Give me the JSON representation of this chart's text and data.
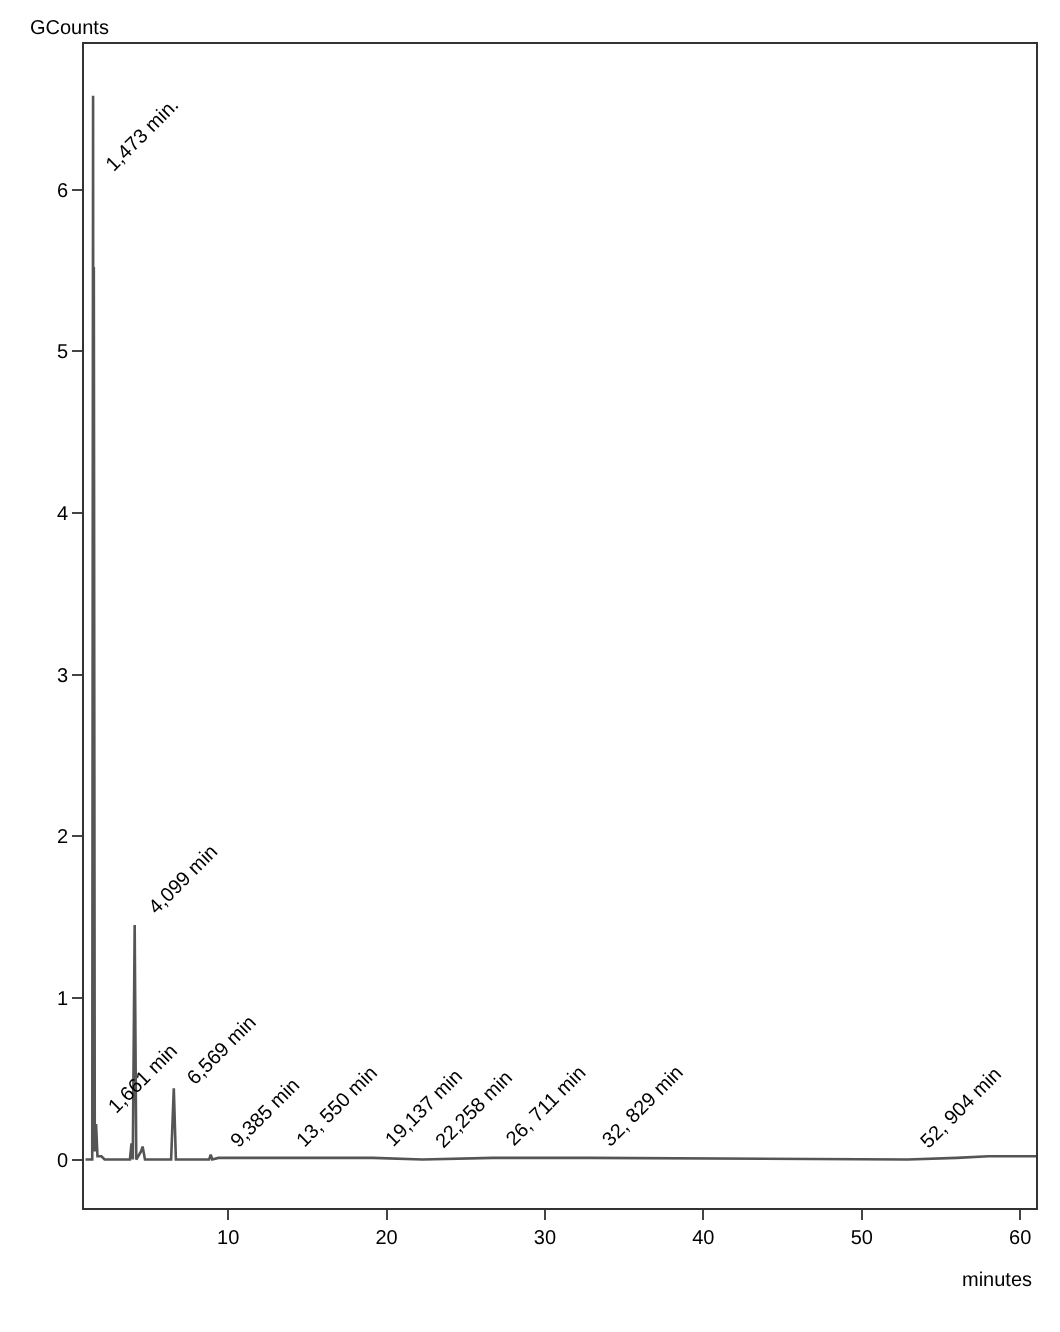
{
  "chart_data": {
    "type": "line",
    "xlabel": "minutes",
    "ylabel": "GCounts",
    "x": [
      1.0,
      1.42,
      1.473,
      1.5,
      1.52,
      1.58,
      1.661,
      1.75,
      2.0,
      2.2,
      3.8,
      3.9,
      3.98,
      4.099,
      4.2,
      4.5,
      4.6,
      4.75,
      6.4,
      6.569,
      6.7,
      8.8,
      8.9,
      9.0,
      9.385,
      13.55,
      19.137,
      22.258,
      26.711,
      32.829,
      52.904,
      56,
      58,
      61
    ],
    "series": [
      {
        "color": "#555555",
        "values": [
          0,
          0,
          6.58,
          0.2,
          5.52,
          0.05,
          0.22,
          0.02,
          0.02,
          0,
          0,
          0.1,
          0,
          1.45,
          0,
          0.05,
          0.08,
          0,
          0,
          0.44,
          0,
          0,
          0.03,
          0,
          0.01,
          0.01,
          0.01,
          0,
          0.01,
          0.01,
          0,
          0.01,
          0.02,
          0.02
        ]
      }
    ],
    "xlim": [
      0.9,
      61
    ],
    "ylim": [
      -0.3,
      6.9
    ],
    "xticks": [
      10,
      20,
      30,
      40,
      50,
      60
    ],
    "yticks": [
      0,
      1,
      2,
      3,
      4,
      5,
      6
    ],
    "grid": false,
    "legend": false,
    "marker": "none",
    "line_style": "solid",
    "annotations": [
      {
        "text": "1,473 min.",
        "x": 1.473,
        "y": 6.05
      },
      {
        "text": "1,661 min",
        "x": 1.661,
        "y": 0.22
      },
      {
        "text": "4,099 min",
        "x": 4.099,
        "y": 1.45
      },
      {
        "text": "6,569 min",
        "x": 6.569,
        "y": 0.4
      },
      {
        "text": "9,385 min",
        "x": 9.385,
        "y": 0.01
      },
      {
        "text": "13, 550 min",
        "x": 13.55,
        "y": 0.01
      },
      {
        "text": "19,137 min",
        "x": 19.137,
        "y": 0.01
      },
      {
        "text": "22,258 min",
        "x": 22.258,
        "y": 0
      },
      {
        "text": "26, 711 min",
        "x": 26.711,
        "y": 0.01
      },
      {
        "text": "32, 829 min",
        "x": 32.829,
        "y": 0.01
      },
      {
        "text": "52, 904 min",
        "x": 52.904,
        "y": 0
      }
    ]
  }
}
